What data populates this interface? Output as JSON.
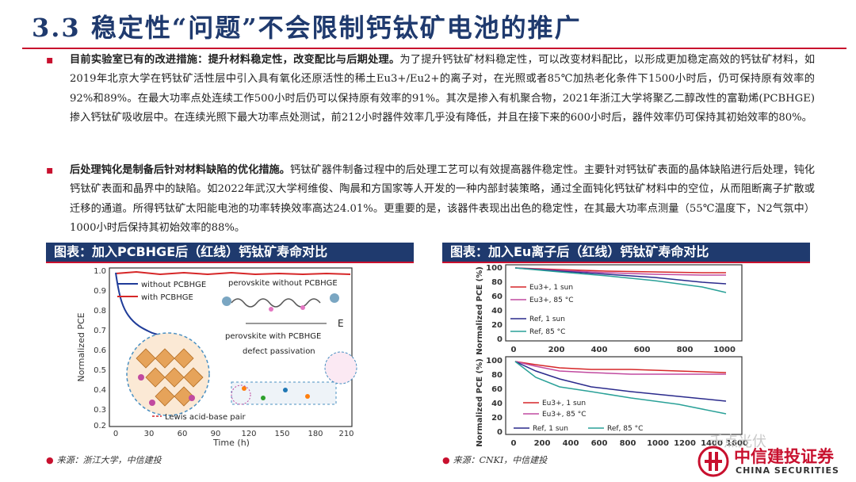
{
  "header": {
    "section_title": "3.3  稳定性“问题”不会限制钙钛矿电池的推广"
  },
  "paragraphs": [
    {
      "lead": "目前实验室已有的改进措施：提升材料稳定性，改变配比与后期处理。",
      "body": "为了提升钙钛矿材料稳定性，可以改变材料配比，以形成更加稳定高效的钙钛矿材料，如2019年北京大学在钙钛矿活性层中引入具有氧化还原活性的稀土Eu3+/Eu2+的离子对，在光照或者85℃加热老化条件下1500小时后，仍可保持原有效率的92%和89%。在最大功率点处连续工作500小时后仍可以保持原有效率的91%。其次是掺入有机聚合物，2021年浙江大学将聚乙二醇改性的富勒烯(PCBHGE)掺入钙钛矿吸收层中。在连续光照下最大功率点处测试，前212小时器件效率几乎没有降低，并且在接下来的600小时后，器件效率仍可保持其初始效率的80%。"
    },
    {
      "lead": "后处理钝化是制备后针对材料缺陷的优化措施。",
      "body": "钙钛矿器件制备过程中的后处理工艺可以有效提高器件稳定性。主要针对钙钛矿表面的晶体缺陷进行后处理，钝化钙钛矿表面和晶界中的缺陷。如2022年武汉大学柯维俊、陶晨和方国家等人开发的一种内部封装策略，通过全面钝化钙钛矿材料中的空位，从而阻断离子扩散或迁移的通道。所得钙钛矿太阳能电池的功率转换效率高达24.01%。更重要的是，该器件表现出出色的稳定性，在其最大功率点测量（55℃温度下，N2气氛中）1000小时后保持其初始效率的88%。"
    }
  ],
  "figure_left": {
    "caption": "图表：加入PCBHGE后（红线）钙钛矿寿命对比",
    "source": "来源：浙江大学，中信建投",
    "xlabel": "Time (h)",
    "ylabel": "Normalized PCE",
    "xticks": [
      "0",
      "30",
      "60",
      "90",
      "120",
      "150",
      "180",
      "210"
    ],
    "yticks": [
      "1.0",
      "0.9",
      "0.8",
      "0.7",
      "0.6",
      "0.5",
      "0.4",
      "0.3",
      "0.2"
    ],
    "legend_without": "without PCBHGE",
    "legend_with": "with PCBHGE",
    "ann_top": "perovskite without PCBHGE",
    "ann_mid": "perovskite with PCBHGE",
    "ann_defect": "defect passivation",
    "ann_lewis": "Lewis acid-base pair",
    "ann_e": "E"
  },
  "figure_right": {
    "caption": "图表：加入Eu离子后（红线）钙钛矿寿命对比",
    "source": "来源：CNKI，中信建投",
    "ylabel": "Normalized PCE (%)",
    "top_xticks": [
      "0",
      "200",
      "400",
      "600",
      "800",
      "1000"
    ],
    "top_yticks": [
      "100",
      "80",
      "60",
      "40",
      "20",
      "0"
    ],
    "bottom_xticks": [
      "0",
      "200",
      "400",
      "600",
      "800",
      "1000",
      "1200",
      "1400",
      "1600"
    ],
    "bottom_yticks": [
      "100",
      "80",
      "60",
      "40",
      "20",
      "0"
    ],
    "top_legend": [
      "Eu3+, 1 sun",
      "Eu3+, 85 °C",
      "Ref, 1 sun",
      "Ref, 85 °C"
    ],
    "bottom_legend": [
      "Eu3+, 1 sun",
      "Eu3+, 85 °C",
      "Ref, 1 sun",
      "Ref, 85 °C"
    ]
  },
  "logo": {
    "cn": "中信建投证券",
    "en": "CHINA SECURITIES"
  },
  "watermark": "千点光伏",
  "colors": {
    "navy": "#1f3a6e",
    "red": "#c8102e"
  }
}
